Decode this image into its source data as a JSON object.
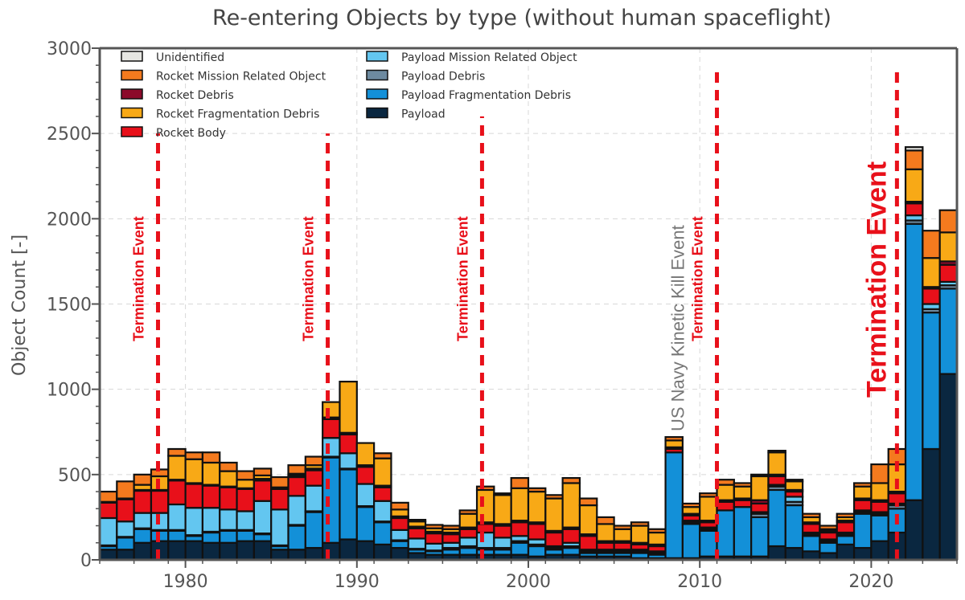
{
  "chart_data": {
    "type": "bar",
    "stacked": true,
    "title": "Re-entering Objects by type (without human spaceflight)",
    "xlabel": "",
    "ylabel": "Object Count [-]",
    "ylim": [
      0,
      3000
    ],
    "xlim": [
      1975,
      2025
    ],
    "yticks": [
      "0",
      "500",
      "1000",
      "1500",
      "2000",
      "2500",
      "3000"
    ],
    "ytick_values": [
      0,
      500,
      1000,
      1500,
      2000,
      2500,
      3000
    ],
    "xticks": [
      "1980",
      "1990",
      "2000",
      "2010",
      "2020"
    ],
    "xtick_values": [
      1980,
      1990,
      2000,
      2010,
      2020
    ],
    "grid": true,
    "legend_position": "top-left",
    "categories": [
      1975,
      1976,
      1977,
      1978,
      1979,
      1980,
      1981,
      1982,
      1983,
      1984,
      1985,
      1986,
      1987,
      1988,
      1989,
      1990,
      1991,
      1992,
      1993,
      1994,
      1995,
      1996,
      1997,
      1998,
      1999,
      2000,
      2001,
      2002,
      2003,
      2004,
      2005,
      2006,
      2007,
      2008,
      2009,
      2010,
      2011,
      2012,
      2013,
      2014,
      2015,
      2016,
      2017,
      2018,
      2019,
      2020,
      2021,
      2022,
      2023,
      2024
    ],
    "series": [
      {
        "name": "Payload",
        "color": "#0a2740",
        "values": [
          60,
          60,
          100,
          110,
          110,
          110,
          100,
          100,
          110,
          110,
          60,
          60,
          70,
          100,
          120,
          110,
          90,
          70,
          40,
          30,
          30,
          30,
          30,
          30,
          30,
          20,
          30,
          30,
          20,
          20,
          20,
          10,
          10,
          10,
          10,
          20,
          20,
          20,
          20,
          80,
          70,
          50,
          40,
          90,
          70,
          110,
          160,
          350,
          650,
          1090
        ]
      },
      {
        "name": "Payload Fragmentation Debris",
        "color": "#1390d8",
        "values": [
          20,
          70,
          80,
          60,
          60,
          30,
          60,
          70,
          60,
          40,
          20,
          140,
          210,
          500,
          410,
          200,
          130,
          40,
          20,
          20,
          30,
          40,
          30,
          30,
          70,
          60,
          30,
          40,
          20,
          20,
          20,
          30,
          20,
          620,
          200,
          150,
          270,
          290,
          230,
          330,
          250,
          90,
          60,
          50,
          200,
          150,
          140,
          1620,
          800,
          500
        ]
      },
      {
        "name": "Payload Debris",
        "color": "#6d8aa0",
        "values": [
          5,
          5,
          5,
          5,
          5,
          5,
          5,
          5,
          5,
          5,
          5,
          5,
          5,
          5,
          5,
          5,
          5,
          5,
          5,
          5,
          10,
          10,
          10,
          10,
          10,
          10,
          10,
          10,
          10,
          10,
          10,
          10,
          10,
          0,
          10,
          10,
          0,
          0,
          20,
          20,
          20,
          10,
          10,
          10,
          10,
          10,
          20,
          20,
          20,
          20
        ]
      },
      {
        "name": "Payload Mission Related Object",
        "color": "#63c6f0",
        "values": [
          160,
          90,
          90,
          100,
          150,
          160,
          140,
          120,
          110,
          190,
          210,
          170,
          150,
          110,
          90,
          130,
          120,
          60,
          60,
          40,
          30,
          50,
          90,
          60,
          30,
          30,
          10,
          20,
          10,
          10,
          10,
          10,
          10,
          0,
          10,
          10,
          0,
          0,
          10,
          10,
          30,
          10,
          10,
          10,
          10,
          10,
          10,
          30,
          30,
          20
        ]
      },
      {
        "name": "Rocket Body",
        "color": "#e8101a",
        "values": [
          90,
          130,
          130,
          130,
          140,
          140,
          130,
          130,
          130,
          120,
          120,
          110,
          90,
          110,
          110,
          100,
          80,
          70,
          60,
          60,
          50,
          50,
          50,
          70,
          80,
          90,
          80,
          80,
          80,
          40,
          40,
          30,
          30,
          20,
          30,
          30,
          50,
          40,
          50,
          50,
          30,
          50,
          40,
          60,
          60,
          60,
          60,
          70,
          90,
          100
        ]
      },
      {
        "name": "Rocket Debris",
        "color": "#8c0a2a",
        "values": [
          5,
          5,
          5,
          5,
          5,
          5,
          5,
          5,
          5,
          10,
          10,
          10,
          10,
          10,
          10,
          10,
          10,
          10,
          10,
          10,
          10,
          10,
          10,
          10,
          10,
          10,
          10,
          10,
          10,
          10,
          10,
          10,
          10,
          10,
          10,
          10,
          10,
          10,
          20,
          10,
          10,
          10,
          10,
          10,
          10,
          10,
          10,
          10,
          10,
          20
        ]
      },
      {
        "name": "Rocket Fragmentation Debris",
        "color": "#f8a916",
        "values": [
          0,
          0,
          30,
          80,
          140,
          140,
          130,
          90,
          50,
          20,
          0,
          10,
          20,
          90,
          300,
          130,
          160,
          40,
          30,
          20,
          20,
          80,
          190,
          170,
          190,
          180,
          190,
          260,
          170,
          100,
          70,
          100,
          70,
          40,
          40,
          140,
          90,
          70,
          140,
          130,
          50,
          30,
          10,
          20,
          70,
          100,
          160,
          190,
          170,
          170
        ]
      },
      {
        "name": "Rocket Mission Related Object",
        "color": "#f47a1e",
        "values": [
          60,
          100,
          60,
          40,
          40,
          40,
          60,
          50,
          50,
          40,
          60,
          50,
          50,
          0,
          0,
          0,
          30,
          40,
          10,
          20,
          20,
          20,
          20,
          10,
          60,
          20,
          20,
          30,
          40,
          40,
          20,
          20,
          20,
          20,
          20,
          20,
          30,
          20,
          10,
          10,
          10,
          20,
          20,
          20,
          20,
          110,
          90,
          110,
          160,
          130
        ]
      },
      {
        "name": "Unidentified",
        "color": "#e6e6e2",
        "values": [
          0,
          0,
          0,
          0,
          0,
          0,
          0,
          0,
          0,
          0,
          0,
          0,
          0,
          0,
          0,
          0,
          0,
          0,
          0,
          0,
          0,
          0,
          0,
          0,
          0,
          0,
          0,
          0,
          0,
          0,
          0,
          0,
          0,
          0,
          0,
          0,
          0,
          0,
          0,
          0,
          0,
          0,
          0,
          0,
          0,
          0,
          0,
          20,
          0,
          0
        ]
      }
    ],
    "legend": [
      {
        "name": "Unidentified",
        "color": "#e6e6e2"
      },
      {
        "name": "Rocket Mission Related Object",
        "color": "#f47a1e"
      },
      {
        "name": "Rocket Debris",
        "color": "#8c0a2a"
      },
      {
        "name": "Rocket Fragmentation Debris",
        "color": "#f8a916"
      },
      {
        "name": "Rocket Body",
        "color": "#e8101a"
      },
      {
        "name": "Payload Mission Related Object",
        "color": "#63c6f0"
      },
      {
        "name": "Payload Debris",
        "color": "#6d8aa0"
      },
      {
        "name": "Payload Fragmentation Debris",
        "color": "#1390d8"
      },
      {
        "name": "Payload",
        "color": "#0a2740"
      }
    ],
    "annotations": [
      {
        "type": "vline",
        "x": 1978.4,
        "label": "Termination Event",
        "color": "#e8101a",
        "label_ymax": 2500,
        "size": "small"
      },
      {
        "type": "vline",
        "x": 1988.3,
        "label": "Termination Event",
        "color": "#e8101a",
        "label_ymax": 2500,
        "size": "small"
      },
      {
        "type": "vline",
        "x": 1997.3,
        "label": "Termination Event",
        "color": "#e8101a",
        "label_ymax": 2600,
        "size": "small"
      },
      {
        "type": "text",
        "x": 2008.6,
        "label": "US Navy Kinetic Kill Event",
        "color": "#777777"
      },
      {
        "type": "vline",
        "x": 2011.0,
        "label": "Termination Event",
        "color": "#e8101a",
        "label_ymax": 2900,
        "size": "small"
      },
      {
        "type": "vline",
        "x": 2021.5,
        "label": "Termination Event",
        "color": "#e8101a",
        "label_ymax": 2900,
        "size": "large"
      }
    ]
  }
}
